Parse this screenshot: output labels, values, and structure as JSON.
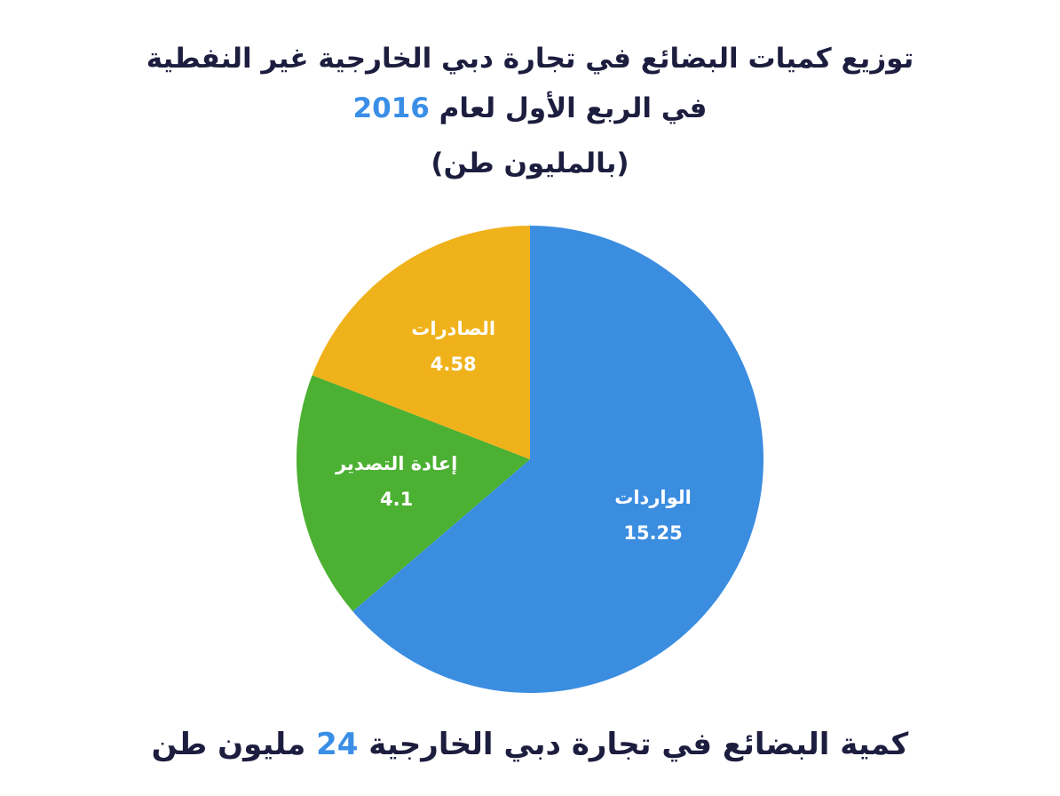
{
  "header": {
    "title_line1": "توزيع كميات البضائع في تجارة دبي الخارجية غير النفطية",
    "title_line2_text": "في الربع الأول لعام",
    "title_line2_year": "2016",
    "subtitle": "(بالمليون طن)"
  },
  "chart_data": {
    "type": "pie",
    "categories": [
      "الواردات",
      "إعادة التصدير",
      "الصادرات"
    ],
    "values": [
      15.25,
      4.1,
      4.58
    ],
    "colors": [
      "#3b8de0",
      "#4cb032",
      "#f0b21a"
    ]
  },
  "footer": {
    "text_before": "كمية البضائع في تجارة دبي الخارجية",
    "total": 24,
    "text_after": "مليون طن"
  }
}
